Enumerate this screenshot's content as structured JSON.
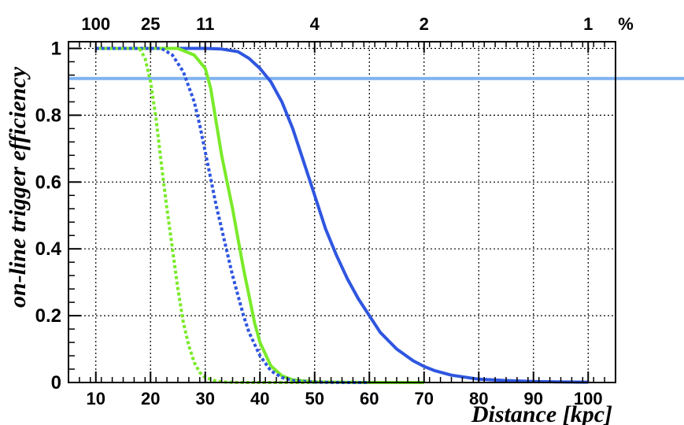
{
  "chart_data": {
    "type": "line",
    "xlabel": "Distance [kpc]",
    "ylabel": "on-line trigger efficiency",
    "xlim": [
      5,
      105
    ],
    "ylim": [
      0,
      1.02
    ],
    "x_ticks": [
      10,
      20,
      30,
      40,
      50,
      60,
      70,
      80,
      90,
      100
    ],
    "y_ticks": [
      0,
      0.2,
      0.4,
      0.6,
      0.8,
      1
    ],
    "y_tick_labels": [
      "0",
      "0.2",
      "0.4",
      "0.6",
      "0.8",
      "1"
    ],
    "grid": true,
    "top_axis": {
      "unit_label": "%",
      "ticks": [
        {
          "x": 10,
          "label": "100"
        },
        {
          "x": 20,
          "label": "25"
        },
        {
          "x": 30,
          "label": "11"
        },
        {
          "x": 50,
          "label": "4"
        },
        {
          "x": 70,
          "label": "2"
        },
        {
          "x": 100,
          "label": "1"
        }
      ]
    },
    "reference_line": {
      "y": 0.91,
      "color": "#7fb2f0"
    },
    "series": [
      {
        "color": "#2f56e0",
        "style": "solid",
        "x": [
          10,
          25,
          30,
          33,
          36,
          38,
          40,
          42,
          44,
          46,
          48,
          50,
          52,
          54,
          56,
          58,
          60,
          62,
          65,
          68,
          70,
          72,
          75,
          80,
          85,
          90,
          95,
          100
        ],
        "y": [
          1.0,
          1.0,
          1.0,
          0.998,
          0.99,
          0.97,
          0.94,
          0.9,
          0.84,
          0.76,
          0.66,
          0.56,
          0.46,
          0.38,
          0.31,
          0.25,
          0.2,
          0.15,
          0.1,
          0.065,
          0.048,
          0.035,
          0.022,
          0.01,
          0.006,
          0.003,
          0.002,
          0.001
        ]
      },
      {
        "color": "#7aeb2a",
        "style": "solid",
        "x": [
          10,
          25,
          28,
          30,
          31,
          32,
          33,
          34,
          35,
          36,
          37,
          38,
          39,
          40,
          42,
          44,
          46,
          50,
          60,
          70
        ],
        "y": [
          1.0,
          1.0,
          0.98,
          0.94,
          0.88,
          0.78,
          0.68,
          0.6,
          0.52,
          0.43,
          0.34,
          0.26,
          0.18,
          0.12,
          0.05,
          0.02,
          0.008,
          0.002,
          0.0,
          0.0
        ]
      },
      {
        "color": "#2f56e0",
        "style": "dotted",
        "x": [
          10,
          22,
          24,
          26,
          28,
          29,
          30,
          31,
          32,
          33,
          34,
          35,
          36,
          37,
          38,
          40,
          42,
          44,
          46,
          50,
          55,
          60
        ],
        "y": [
          1.0,
          1.0,
          0.98,
          0.93,
          0.84,
          0.77,
          0.69,
          0.61,
          0.53,
          0.46,
          0.39,
          0.32,
          0.26,
          0.2,
          0.15,
          0.08,
          0.035,
          0.015,
          0.006,
          0.001,
          0.0,
          0.0
        ]
      },
      {
        "color": "#7aeb2a",
        "style": "dotted",
        "x": [
          18,
          19,
          20,
          21,
          22,
          23,
          24,
          25,
          26,
          27,
          28,
          29,
          30,
          32,
          34,
          36,
          40,
          50
        ],
        "y": [
          1.0,
          0.97,
          0.9,
          0.79,
          0.65,
          0.52,
          0.4,
          0.28,
          0.18,
          0.11,
          0.06,
          0.03,
          0.015,
          0.004,
          0.001,
          0.0,
          0.0,
          0.0
        ]
      }
    ]
  }
}
